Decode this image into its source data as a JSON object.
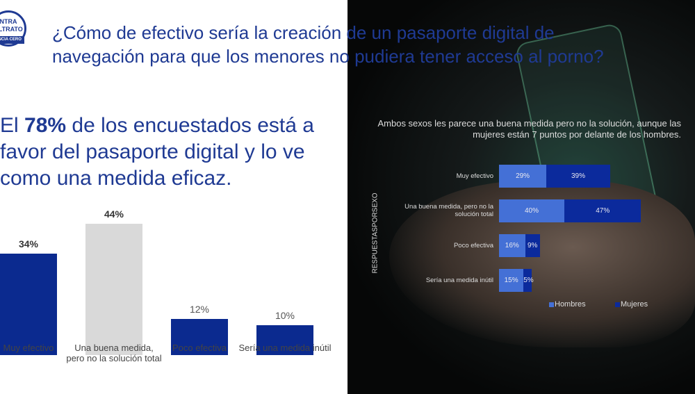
{
  "logo": [
    "NTRA",
    "ALTRATO",
    "ANCIA CERO"
  ],
  "title": "¿Cómo de efectivo sería la creación de un pasaporte digital de navegación para que los menores no pudiera tener acceso al porno?",
  "headline": [
    "El ",
    "78%",
    " de los encuestados está a favor del pasaporte digital y lo ve como una medida eficaz."
  ],
  "chart_data": [
    {
      "type": "bar",
      "categories": [
        "Muy efectivo",
        "Una buena medida, pero no la solución total",
        "Poco efectiva",
        "Sería una medida inútil"
      ],
      "values": [
        34,
        44,
        12,
        10
      ],
      "value_labels": [
        "34%",
        "44%",
        "12%",
        "10%"
      ],
      "colors": [
        "#0b2a8f",
        "#d9d9d9",
        "#0b2a8f",
        "#0b2a8f"
      ]
    },
    {
      "type": "stacked-hbar",
      "title": "Ambos sexos les parece una buena medida pero no la solución, aunque las mujeres están 7 puntos por delante de los hombres.",
      "y_label": "RESPUESTASPORSEXO",
      "categories": [
        "Muy efectivo",
        "Una buena medida, pero no la solución total",
        "Poco efectiva",
        "Sería una medida inútil"
      ],
      "series": [
        {
          "name": "Hombres",
          "color": "#4470d6",
          "values": [
            29,
            40,
            16,
            15
          ],
          "value_labels": [
            "29%",
            "40%",
            "16%",
            "15%"
          ]
        },
        {
          "name": "Mujeres",
          "color": "#0b2a9c",
          "values": [
            39,
            47,
            9,
            5
          ],
          "value_labels": [
            "39%",
            "47%",
            "9%",
            "5%"
          ]
        }
      ]
    }
  ]
}
